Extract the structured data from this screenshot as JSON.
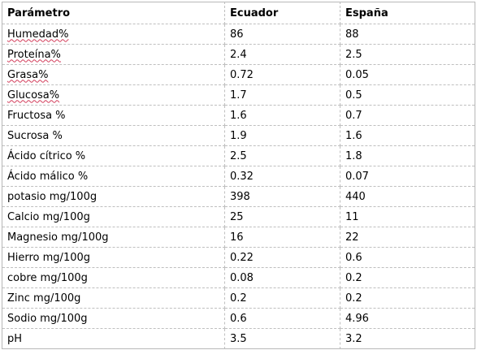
{
  "table": {
    "headers": [
      "Parámetro",
      "Ecuador",
      "España"
    ],
    "rows": [
      {
        "param": "Humedad%",
        "ecuador": "86",
        "espana": "88",
        "spell": true
      },
      {
        "param": "Proteína%",
        "ecuador": "2.4",
        "espana": "2.5",
        "spell": true
      },
      {
        "param": "Grasa%",
        "ecuador": "0.72",
        "espana": "0.05",
        "spell": true
      },
      {
        "param": "Glucosa%",
        "ecuador": "1.7",
        "espana": "0.5",
        "spell": true
      },
      {
        "param": "Fructosa %",
        "ecuador": "1.6",
        "espana": "0.7",
        "spell": false
      },
      {
        "param": "Sucrosa %",
        "ecuador": "1.9",
        "espana": "1.6",
        "spell": false
      },
      {
        "param": "Ácido cítrico %",
        "ecuador": "2.5",
        "espana": "1.8",
        "spell": false
      },
      {
        "param": "Ácido málico %",
        "ecuador": "0.32",
        "espana": "0.07",
        "spell": false
      },
      {
        "param": "potasio mg/100g",
        "ecuador": "398",
        "espana": "440",
        "spell": false
      },
      {
        "param": "Calcio  mg/100g",
        "ecuador": "25",
        "espana": "11",
        "spell": false
      },
      {
        "param": "Magnesio mg/100g",
        "ecuador": "16",
        "espana": "22",
        "spell": false
      },
      {
        "param": "Hierro mg/100g",
        "ecuador": "0.22",
        "espana": "0.6",
        "spell": false
      },
      {
        "param": "cobre mg/100g",
        "ecuador": "0.08",
        "espana": "0.2",
        "spell": false
      },
      {
        "param": "Zinc mg/100g",
        "ecuador": "0.2",
        "espana": "0.2",
        "spell": false
      },
      {
        "param": "Sodio mg/100g",
        "ecuador": "0.6",
        "espana": "4.96",
        "spell": false
      },
      {
        "param": "pH",
        "ecuador": "3.5",
        "espana": "3.2",
        "spell": false
      }
    ]
  },
  "colors": {
    "spellcheck_underline": "#d23c5a",
    "border": "#b8b8b8"
  }
}
